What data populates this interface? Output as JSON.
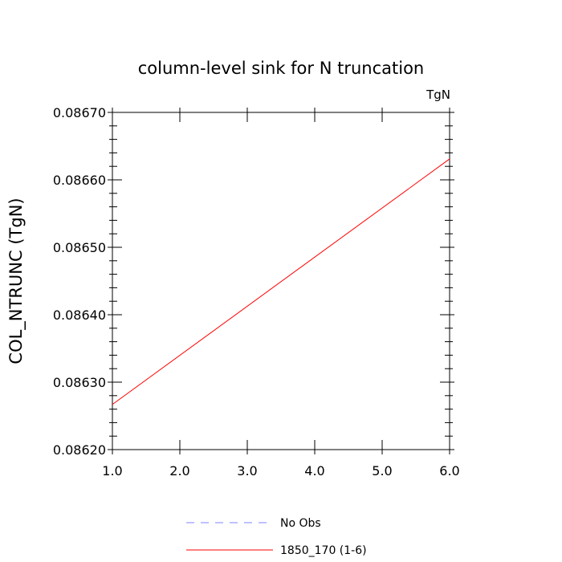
{
  "chart_data": {
    "type": "line",
    "title": "column-level sink for N truncation",
    "units_label": "TgN",
    "xlabel": "",
    "ylabel": "COL_NTRUNC  (TgN)",
    "xlim": [
      1.0,
      6.0
    ],
    "ylim": [
      0.0862,
      0.0867
    ],
    "x_ticks": [
      "1.0",
      "2.0",
      "3.0",
      "4.0",
      "5.0",
      "6.0"
    ],
    "y_ticks": [
      "0.08620",
      "0.08630",
      "0.08640",
      "0.08650",
      "0.08660",
      "0.08670"
    ],
    "grid": false,
    "legend_placement": "bottom",
    "series": [
      {
        "name": "No Obs",
        "color": "#8080ff",
        "dash": "dashed",
        "x": [],
        "y": []
      },
      {
        "name": "1850_170 (1-6)",
        "color": "#ff0000",
        "dash": "solid",
        "x": [
          1.0,
          6.0
        ],
        "y": [
          0.086267,
          0.086631
        ]
      }
    ]
  }
}
